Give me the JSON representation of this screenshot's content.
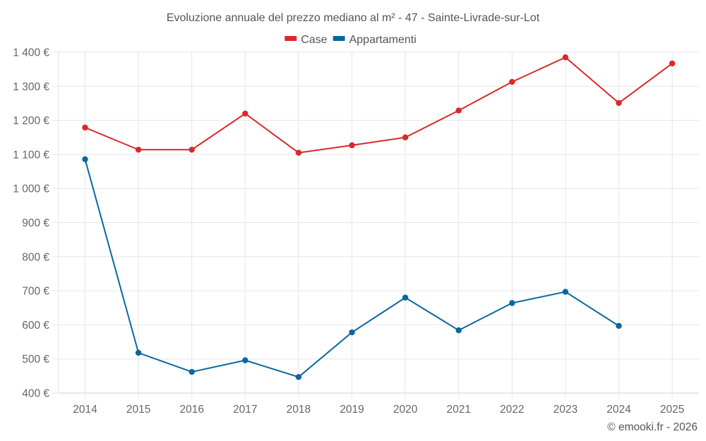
{
  "chart_data": {
    "type": "line",
    "title": "Evoluzione annuale del prezzo mediano al m² - 47 - Sainte-Livrade-sur-Lot",
    "xlabel": "",
    "ylabel": "",
    "x": [
      "2014",
      "2015",
      "2016",
      "2017",
      "2018",
      "2019",
      "2020",
      "2021",
      "2022",
      "2023",
      "2024",
      "2025"
    ],
    "ylim": [
      400,
      1400
    ],
    "yticks": [
      400,
      500,
      600,
      700,
      800,
      900,
      1000,
      1100,
      1200,
      1300,
      1400
    ],
    "ytick_labels": [
      "400 €",
      "500 €",
      "600 €",
      "700 €",
      "800 €",
      "900 €",
      "1 000 €",
      "1 100 €",
      "1 200 €",
      "1 300 €",
      "1 400 €"
    ],
    "grid": true,
    "legend_position": "top-center",
    "series": [
      {
        "name": "Case",
        "color": "#dc2828",
        "values": [
          1179,
          1114,
          1114,
          1220,
          1105,
          1127,
          1150,
          1229,
          1313,
          1385,
          1251,
          1367
        ]
      },
      {
        "name": "Appartamenti",
        "color": "#0a67a0",
        "values": [
          1086,
          518,
          462,
          496,
          447,
          578,
          680,
          584,
          664,
          697,
          597,
          null
        ]
      }
    ]
  },
  "credit": "© emooki.fr - 2026"
}
